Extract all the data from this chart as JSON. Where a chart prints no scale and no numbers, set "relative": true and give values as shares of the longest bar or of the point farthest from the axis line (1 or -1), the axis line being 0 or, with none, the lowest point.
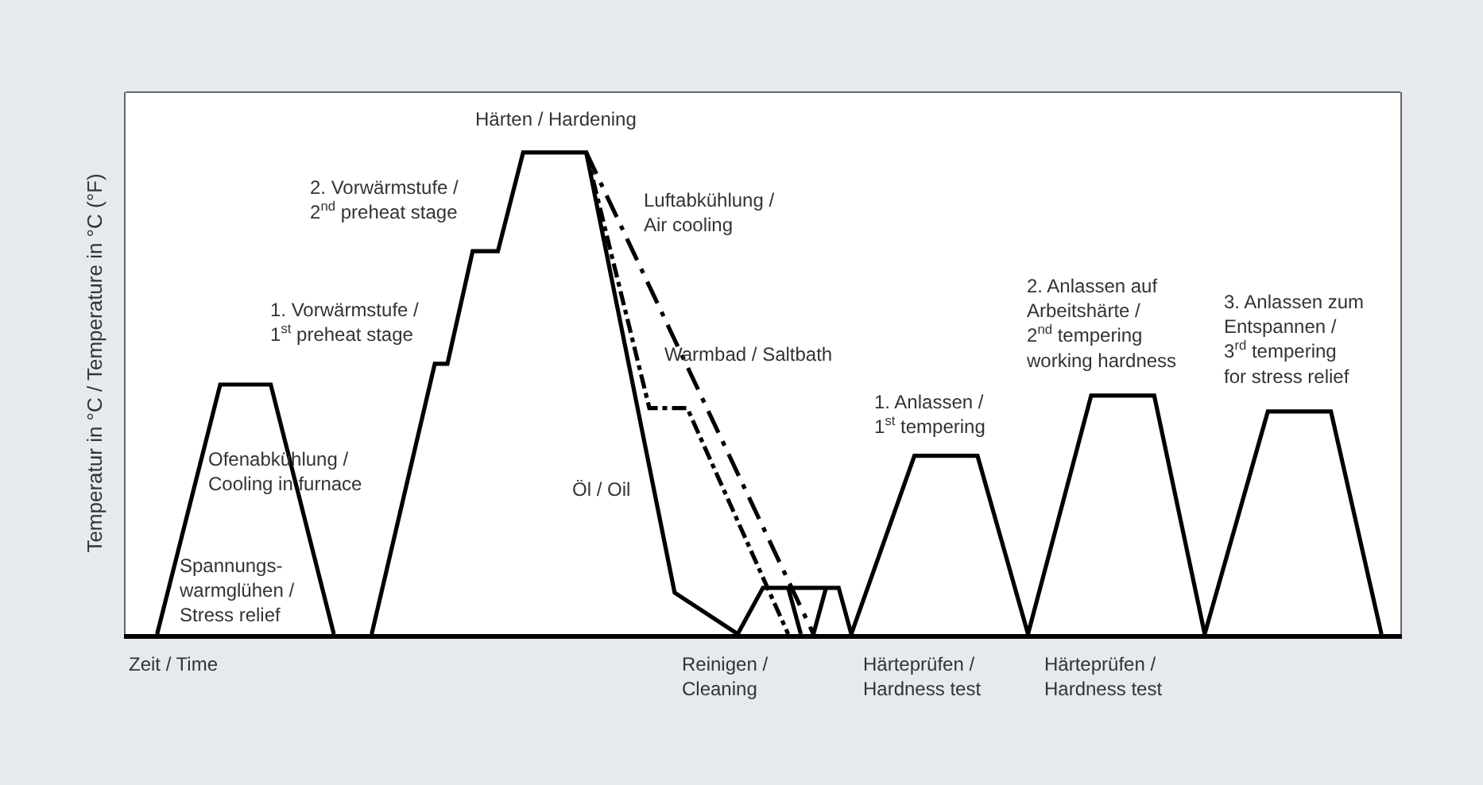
{
  "chart_data": {
    "type": "line",
    "relative": true,
    "ylabel": "Temperatur in °C / Temperature in °C (°F)",
    "categories": [
      null,
      null,
      null,
      null,
      null,
      null,
      null,
      null,
      null,
      null,
      null,
      null,
      null,
      null,
      null,
      null,
      null,
      null,
      null,
      null,
      null,
      null,
      null,
      null,
      null,
      null,
      null,
      null,
      null,
      null,
      null,
      null,
      null,
      null,
      null,
      null,
      null,
      null,
      null,
      null,
      null,
      null,
      null,
      null,
      null,
      null,
      null,
      null,
      null,
      null,
      null,
      null,
      null,
      null,
      null,
      null,
      null,
      null,
      null,
      null,
      null,
      null,
      null,
      null,
      null,
      null,
      null,
      null,
      null,
      null,
      null,
      null,
      null,
      null,
      null,
      null,
      null,
      null,
      null,
      null,
      null,
      null,
      null,
      null,
      null,
      null,
      null,
      null,
      null,
      null,
      null,
      null,
      null,
      null,
      null,
      null,
      null,
      null,
      null,
      null,
      null
    ],
    "marker": "none",
    "series": [
      {
        "color": "#000000",
        "line_style": "solid",
        "values": [
          null,
          null,
          0,
          null,
          null,
          null,
          null,
          0.518,
          null,
          null,
          null,
          0.518,
          null,
          null,
          null,
          null,
          0,
          null,
          null,
          null,
          null,
          null,
          null,
          null,
          null,
          null,
          null,
          null,
          null,
          null,
          null,
          null,
          null,
          null,
          null,
          null,
          null,
          null,
          null,
          null,
          null,
          null,
          null,
          null,
          null,
          null,
          null,
          null,
          null,
          null,
          null,
          null,
          null,
          null,
          null,
          null,
          null,
          null,
          null,
          null,
          null,
          null,
          null,
          null,
          null,
          null,
          null,
          null,
          null,
          null,
          null,
          null,
          null,
          null,
          null,
          null,
          null,
          null,
          null,
          null,
          null,
          null,
          null,
          null,
          null,
          null,
          null,
          null,
          null,
          null,
          null,
          null,
          null,
          null,
          null,
          null,
          null,
          null,
          null,
          null,
          null
        ]
      },
      {
        "color": "#000000",
        "line_style": "solid",
        "values": [
          null,
          null,
          null,
          null,
          null,
          null,
          null,
          null,
          null,
          null,
          null,
          null,
          null,
          null,
          null,
          null,
          null,
          null,
          null,
          0,
          null,
          null,
          null,
          null,
          0.561,
          0.561,
          null,
          0.795,
          null,
          0.795,
          null,
          1,
          null,
          null,
          null,
          null,
          1,
          null,
          null,
          null,
          null,
          null,
          null,
          0.086,
          null,
          null,
          null,
          null,
          0,
          null,
          0.096,
          null,
          null,
          null,
          null,
          null,
          0.096,
          0,
          null,
          null,
          null,
          null,
          0.37,
          null,
          null,
          null,
          null,
          0.37,
          null,
          null,
          null,
          0,
          null,
          null,
          null,
          null,
          0.495,
          null,
          null,
          null,
          null,
          0.495,
          null,
          null,
          null,
          0,
          null,
          null,
          null,
          null,
          0.462,
          null,
          null,
          null,
          null,
          0.462,
          null,
          null,
          null,
          0,
          null
        ]
      },
      {
        "color": "#000000",
        "line_style": "solid",
        "values": [
          null,
          null,
          null,
          null,
          null,
          null,
          null,
          null,
          null,
          null,
          null,
          null,
          null,
          null,
          null,
          null,
          null,
          null,
          null,
          null,
          null,
          null,
          null,
          null,
          null,
          null,
          null,
          null,
          null,
          null,
          null,
          null,
          null,
          null,
          null,
          null,
          null,
          null,
          null,
          null,
          null,
          null,
          null,
          null,
          null,
          null,
          null,
          null,
          null,
          null,
          null,
          null,
          0.096,
          0,
          null,
          null,
          null,
          null,
          null,
          null,
          null,
          null,
          null,
          null,
          null,
          null,
          null,
          null,
          null,
          null,
          null,
          null,
          null,
          null,
          null,
          null,
          null,
          null,
          null,
          null,
          null,
          null,
          null,
          null,
          null,
          null,
          null,
          null,
          null,
          null,
          null,
          null,
          null,
          null,
          null,
          null,
          null,
          null,
          null,
          null,
          null
        ]
      },
      {
        "color": "#000000",
        "line_style": "solid",
        "values": [
          null,
          null,
          null,
          null,
          null,
          null,
          null,
          null,
          null,
          null,
          null,
          null,
          null,
          null,
          null,
          null,
          null,
          null,
          null,
          null,
          null,
          null,
          null,
          null,
          null,
          null,
          null,
          null,
          null,
          null,
          null,
          null,
          null,
          null,
          null,
          null,
          null,
          null,
          null,
          null,
          null,
          null,
          null,
          null,
          null,
          null,
          null,
          null,
          null,
          null,
          null,
          null,
          null,
          null,
          0,
          0.096,
          null,
          null,
          null,
          null,
          null,
          null,
          null,
          null,
          null,
          null,
          null,
          null,
          null,
          null,
          null,
          null,
          null,
          null,
          null,
          null,
          null,
          null,
          null,
          null,
          null,
          null,
          null,
          null,
          null,
          null,
          null,
          null,
          null,
          null,
          null,
          null,
          null,
          null,
          null,
          null,
          null,
          null,
          null,
          null,
          null
        ]
      },
      {
        "color": "#000000",
        "line_style": "dashdot",
        "values": [
          null,
          null,
          null,
          null,
          null,
          null,
          null,
          null,
          null,
          null,
          null,
          null,
          null,
          null,
          null,
          null,
          null,
          null,
          null,
          null,
          null,
          null,
          null,
          null,
          null,
          null,
          null,
          null,
          null,
          null,
          null,
          null,
          null,
          null,
          null,
          null,
          1,
          null,
          null,
          null,
          null,
          0.469,
          null,
          null,
          0.469,
          null,
          null,
          null,
          null,
          null,
          null,
          null,
          0,
          null,
          null,
          null,
          null,
          null,
          null,
          null,
          null,
          null,
          null,
          null,
          null,
          null,
          null,
          null,
          null,
          null,
          null,
          null,
          null,
          null,
          null,
          null,
          null,
          null,
          null,
          null,
          null,
          null,
          null,
          null,
          null,
          null,
          null,
          null,
          null,
          null,
          null,
          null,
          null,
          null,
          null,
          null,
          null,
          null,
          null,
          null,
          null
        ]
      },
      {
        "color": "#000000",
        "line_style": "longdashdot",
        "values": [
          null,
          null,
          null,
          null,
          null,
          null,
          null,
          null,
          null,
          null,
          null,
          null,
          null,
          null,
          null,
          null,
          null,
          null,
          null,
          null,
          null,
          null,
          null,
          null,
          null,
          null,
          null,
          null,
          null,
          null,
          null,
          null,
          null,
          null,
          null,
          null,
          1,
          null,
          null,
          null,
          null,
          null,
          null,
          null,
          null,
          null,
          null,
          null,
          null,
          null,
          null,
          null,
          null,
          null,
          0,
          null,
          null,
          null,
          null,
          null,
          null,
          null,
          null,
          null,
          null,
          null,
          null,
          null,
          null,
          null,
          null,
          null,
          null,
          null,
          null,
          null,
          null,
          null,
          null,
          null,
          null,
          null,
          null,
          null,
          null,
          null,
          null,
          null,
          null,
          null,
          null,
          null,
          null,
          null,
          null,
          null,
          null,
          null,
          null,
          null,
          null
        ]
      }
    ],
    "annotations": [
      "Härten / Hardening",
      "2. Vorwärmstufe /\n2$^{nd}$ preheat stage",
      "1. Vorwärmstufe /\n1$^{st}$ preheat stage",
      "Ofenabkühlung /\nCooling in furnace",
      "Spannungs-\nwarmglühen /\nStress relief",
      "Luftabkühlung /\nAir cooling",
      "Warmbad / Saltbath",
      "Öl / Oil",
      "1. Anlassen /\n1$^{st}$ tempering",
      "2. Anlassen auf\nArbeitshärte /\n2$^{nd}$ tempering\nworking hardness",
      "3. Anlassen zum\nEntspannen /\n3$^{rd}$ tempering\nfor stress relief",
      "Zeit / Time",
      "Reinigen /\nCleaning",
      "Härteprüfen /\nHardness test",
      "Härteprüfen /\nHardness test"
    ]
  }
}
